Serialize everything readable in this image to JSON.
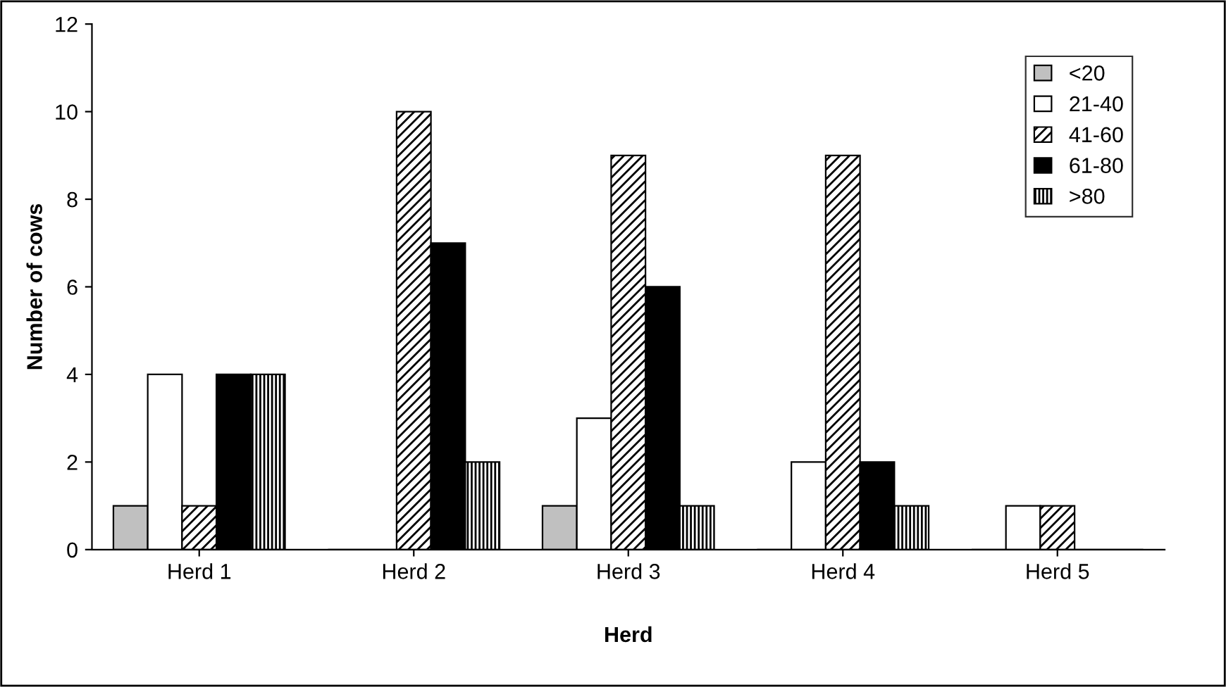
{
  "chart_data": {
    "type": "bar",
    "xlabel": "Herd",
    "ylabel": "Number of cows",
    "categories": [
      "Herd 1",
      "Herd 2",
      "Herd 3",
      "Herd 4",
      "Herd 5"
    ],
    "series": [
      {
        "name": "<20",
        "color": "#c0c0c0",
        "values": [
          1,
          0,
          1,
          0,
          0
        ]
      },
      {
        "name": "21-40",
        "color": "#ffffff",
        "values": [
          4,
          0,
          3,
          2,
          1
        ]
      },
      {
        "name": "41-60",
        "color": "#000000",
        "values": [
          1,
          10,
          9,
          9,
          1
        ]
      },
      {
        "name": "61-80",
        "color": "#000000",
        "values": [
          4,
          7,
          6,
          2,
          0
        ]
      },
      {
        "name": ">80",
        "color": "#000000",
        "values": [
          4,
          2,
          1,
          1,
          0
        ]
      }
    ],
    "ylim": [
      0,
      12
    ],
    "yticks": [
      0,
      2,
      4,
      6,
      8,
      10,
      12
    ],
    "grid": false,
    "legend": "top right"
  }
}
